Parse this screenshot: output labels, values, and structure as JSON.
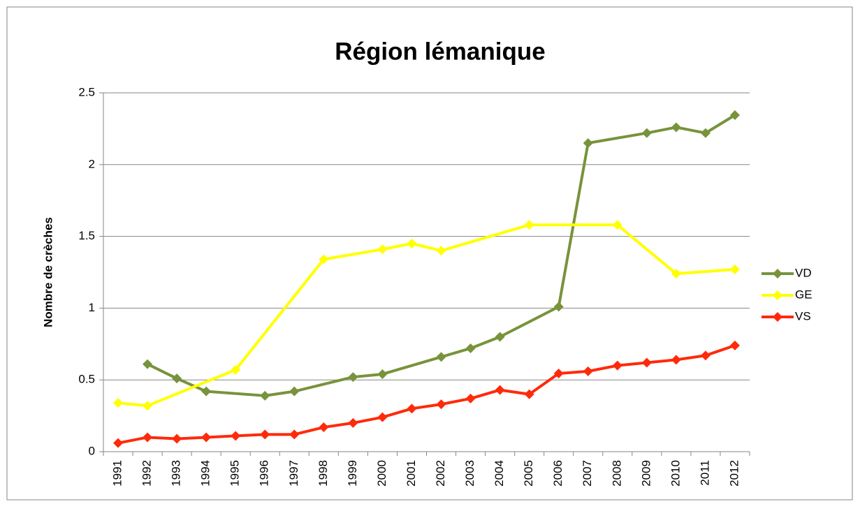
{
  "chart_data": {
    "type": "line",
    "title": "Région lémanique",
    "ylabel": "Nombre de crèches",
    "categories": [
      "1991",
      "1992",
      "1993",
      "1994",
      "1995",
      "1996",
      "1997",
      "1998",
      "1999",
      "2000",
      "2001",
      "2002",
      "2003",
      "2004",
      "2005",
      "2006",
      "2007",
      "2008",
      "2009",
      "2010",
      "2011",
      "2012"
    ],
    "series": [
      {
        "name": "VD",
        "color": "#77933c",
        "values": [
          null,
          0.61,
          0.51,
          0.42,
          null,
          0.39,
          0.42,
          null,
          0.52,
          0.54,
          null,
          0.66,
          0.72,
          0.8,
          null,
          1.01,
          2.15,
          null,
          2.22,
          2.26,
          2.22,
          2.345
        ]
      },
      {
        "name": "GE",
        "color": "#ffff00",
        "values": [
          0.34,
          0.32,
          null,
          null,
          0.57,
          null,
          null,
          1.34,
          null,
          1.41,
          1.45,
          1.4,
          null,
          null,
          1.58,
          null,
          null,
          1.58,
          null,
          1.24,
          null,
          1.27
        ]
      },
      {
        "name": "VS",
        "color": "#ff2a0a",
        "values": [
          0.06,
          0.1,
          0.09,
          0.1,
          0.11,
          0.12,
          0.12,
          0.17,
          0.2,
          0.24,
          0.3,
          0.33,
          0.37,
          0.43,
          0.4,
          0.545,
          0.56,
          0.6,
          0.62,
          0.64,
          0.67,
          0.74
        ]
      }
    ],
    "ylim": [
      0,
      2.5
    ],
    "yticks": [
      0,
      0.5,
      1,
      1.5,
      2,
      2.5
    ],
    "grid": true,
    "legend": "right"
  }
}
